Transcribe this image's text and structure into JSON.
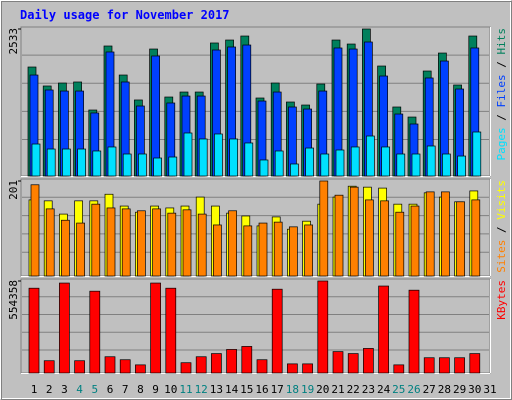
{
  "chart_data": {
    "type": "bar",
    "title": "Daily usage for November 2017",
    "categories": [
      "1",
      "2",
      "3",
      "4",
      "5",
      "6",
      "7",
      "8",
      "9",
      "10",
      "11",
      "12",
      "13",
      "14",
      "15",
      "16",
      "17",
      "18",
      "19",
      "20",
      "21",
      "22",
      "23",
      "24",
      "25",
      "26",
      "27",
      "28",
      "29",
      "30",
      "31"
    ],
    "category_colors": [
      "#000000",
      "#000000",
      "#000000",
      "#008080",
      "#008080",
      "#000000",
      "#000000",
      "#000000",
      "#000000",
      "#000000",
      "#008080",
      "#008080",
      "#000000",
      "#000000",
      "#000000",
      "#000000",
      "#000000",
      "#008080",
      "#008080",
      "#000000",
      "#000000",
      "#000000",
      "#000000",
      "#000000",
      "#008080",
      "#008080",
      "#000000",
      "#000000",
      "#000000",
      "#000000",
      "#000000"
    ],
    "legend_separator": " / ",
    "panels": [
      {
        "ylim": [
          0,
          2533
        ],
        "yticks": [
          2533
        ],
        "series": [
          {
            "name": "Hits",
            "color": "#00805c",
            "values": [
              1878,
              1551,
              1602,
              1620,
              1137,
              2240,
              1740,
              1310,
              2188,
              1361,
              1447,
              1447,
              2292,
              2343,
              2412,
              1344,
              1602,
              1275,
              1223,
              1585,
              2343,
              2274,
              2533,
              1895,
              1189,
              1016,
              1809,
              2119,
              1568,
              2412,
              0
            ]
          },
          {
            "name": "Files",
            "color": "#0040ff",
            "values": [
              1740,
              1482,
              1464,
              1464,
              1086,
              2137,
              1620,
              1206,
              2068,
              1258,
              1378,
              1378,
              2171,
              2223,
              2257,
              1292,
              1447,
              1189,
              1154,
              1464,
              2206,
              2188,
              2309,
              1723,
              1068,
              896,
              1689,
              1981,
              1499,
              2206,
              0
            ]
          },
          {
            "name": "Pages",
            "color": "#00e0ff",
            "values": [
              551,
              465,
              465,
              465,
              431,
              500,
              379,
              379,
              310,
              327,
              741,
              638,
              724,
              638,
              569,
              276,
              431,
              207,
              482,
              379,
              448,
              500,
              689,
              500,
              379,
              379,
              517,
              379,
              344,
              758,
              0
            ]
          }
        ]
      },
      {
        "ylim": [
          0,
          201
        ],
        "yticks": [
          201
        ],
        "series": [
          {
            "name": "Visits",
            "color": "#ffff00",
            "values": [
              161,
              159,
              131,
              159,
              159,
              173,
              148,
              135,
              148,
              144,
              148,
              167,
              148,
              133,
              127,
              106,
              125,
              99,
              116,
              152,
              167,
              190,
              188,
              186,
              152,
              152,
              176,
              167,
              157,
              180,
              0
            ]
          },
          {
            "name": "Sites",
            "color": "#ff8000",
            "values": [
              193,
              142,
              118,
              112,
              152,
              144,
              142,
              138,
              142,
              133,
              140,
              131,
              108,
              138,
              106,
              112,
              114,
              104,
              108,
              201,
              171,
              188,
              161,
              159,
              135,
              148,
              178,
              178,
              157,
              161,
              0
            ]
          }
        ]
      },
      {
        "ylim": [
          0,
          554358
        ],
        "yticks": [
          554358
        ],
        "series": [
          {
            "name": "KBytes",
            "color": "#ff0000",
            "values": [
              511000,
              74000,
              542000,
              74000,
              493000,
              98000,
              80000,
              49000,
              542000,
              511000,
              62000,
              98000,
              117000,
              142000,
              160000,
              80000,
              505000,
              55000,
              55000,
              554358,
              129000,
              117000,
              148000,
              524000,
              49000,
              499000,
              92000,
              92000,
              92000,
              117000,
              0
            ]
          }
        ]
      }
    ]
  }
}
